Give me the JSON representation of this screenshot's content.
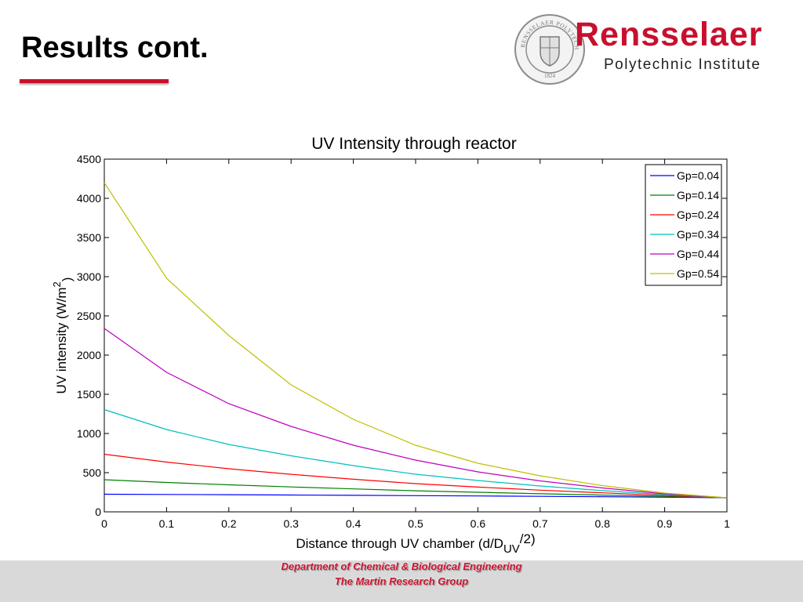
{
  "slide": {
    "title": "Results cont."
  },
  "logo": {
    "name": "Rensselaer",
    "subtitle": "Polytechnic Institute",
    "seal_text": "RENSSELAER POLYTECHNIC INSTITUTE",
    "seal_year": "1824"
  },
  "footer": {
    "line1": "Department of Chemical & Biological Engineering",
    "line2": "The Martin Research Group"
  },
  "colors": {
    "accent_red": "#c8102e",
    "footer_gray": "#d9d9d9"
  },
  "chart_data": {
    "type": "line",
    "title": "UV Intensity through reactor",
    "xlabel_main": "Distance through UV chamber (d/D",
    "xlabel_sub": "UV",
    "xlabel_end": "/2)",
    "ylabel_main": "UV intensity (W/m",
    "ylabel_sup": "2",
    "ylabel_end": ")",
    "xlim": [
      0,
      1
    ],
    "ylim": [
      0,
      4500
    ],
    "xticks": [
      "0",
      "0.1",
      "0.2",
      "0.3",
      "0.4",
      "0.5",
      "0.6",
      "0.7",
      "0.8",
      "0.9",
      "1"
    ],
    "yticks": [
      "0",
      "500",
      "1000",
      "1500",
      "2000",
      "2500",
      "3000",
      "3500",
      "4000",
      "4500"
    ],
    "grid": false,
    "legend_position": "top-right",
    "x": [
      0,
      0.1,
      0.2,
      0.3,
      0.4,
      0.5,
      0.6,
      0.7,
      0.8,
      0.9,
      1.0
    ],
    "series": [
      {
        "name": "Gp=0.04",
        "color": "#0000ff",
        "values": [
          225,
          222,
          219,
          215,
          211,
          207,
          203,
          198,
          193,
          187,
          180
        ]
      },
      {
        "name": "Gp=0.14",
        "color": "#008000",
        "values": [
          410,
          375,
          345,
          318,
          293,
          269,
          250,
          231,
          214,
          197,
          180
        ]
      },
      {
        "name": "Gp=0.24",
        "color": "#ff0000",
        "values": [
          735,
          635,
          550,
          479,
          416,
          360,
          316,
          277,
          243,
          208,
          180
        ]
      },
      {
        "name": "Gp=0.34",
        "color": "#00bfbf",
        "values": [
          1305,
          1050,
          860,
          715,
          590,
          480,
          400,
          330,
          271,
          220,
          180
        ]
      },
      {
        "name": "Gp=0.44",
        "color": "#bf00bf",
        "values": [
          2340,
          1780,
          1380,
          1090,
          850,
          660,
          510,
          395,
          305,
          230,
          180
        ]
      },
      {
        "name": "Gp=0.54",
        "color": "#bfbf00",
        "values": [
          4200,
          2980,
          2250,
          1620,
          1180,
          850,
          620,
          460,
          335,
          240,
          180
        ]
      }
    ]
  }
}
